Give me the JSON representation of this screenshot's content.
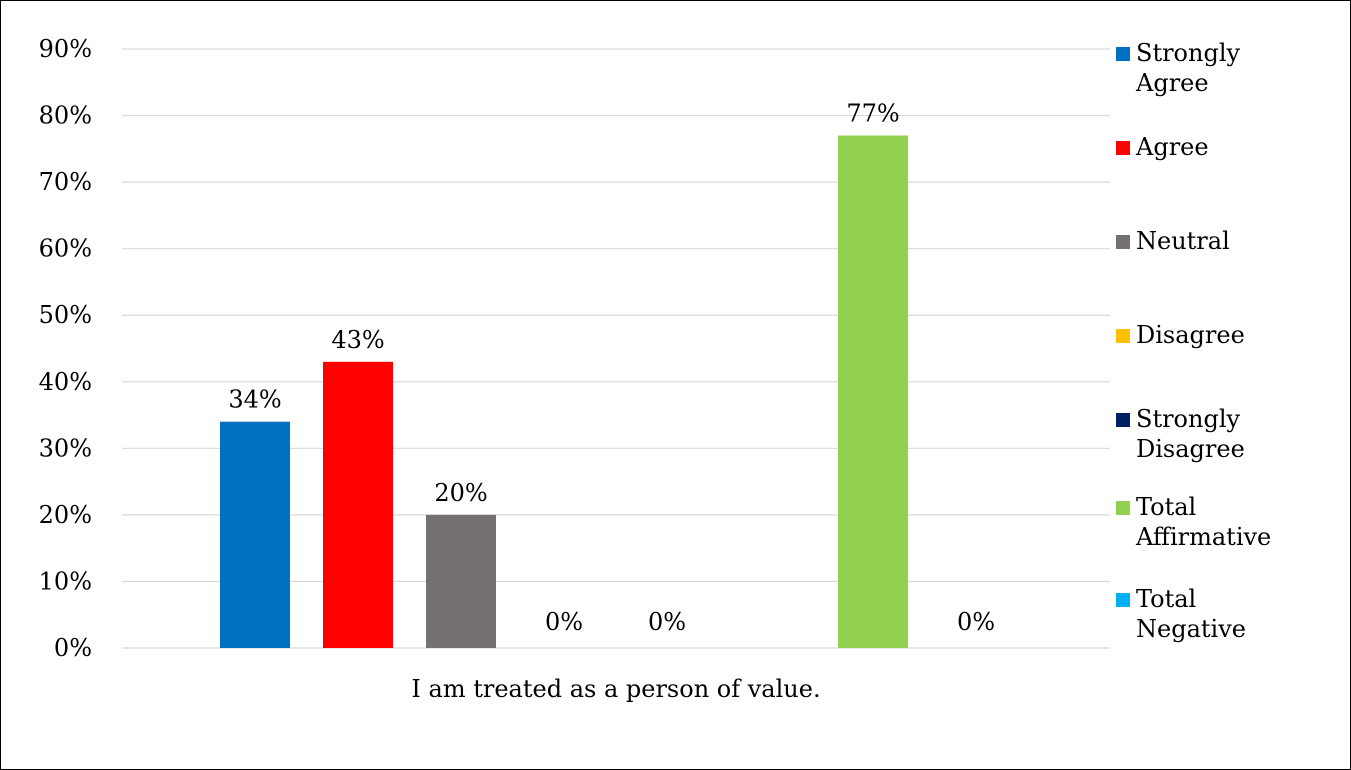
{
  "chart_data": {
    "type": "bar",
    "categories": [
      "I am treated as a person of value."
    ],
    "series": [
      {
        "name": "Strongly Agree",
        "values": [
          0.34
        ],
        "label": "34%",
        "color": "#0070C0"
      },
      {
        "name": "Agree",
        "values": [
          0.43
        ],
        "label": "43%",
        "color": "#FF0000"
      },
      {
        "name": "Neutral",
        "values": [
          0.2
        ],
        "label": "20%",
        "color": "#767171"
      },
      {
        "name": "Disagree",
        "values": [
          0.0
        ],
        "label": "0%",
        "color": "#FFC000"
      },
      {
        "name": "Strongly Disagree",
        "values": [
          0.0
        ],
        "label": "0%",
        "color": "#002060"
      },
      {
        "name": "Total Affirmative",
        "values": [
          0.77
        ],
        "label": "77%",
        "color": "#92D050"
      },
      {
        "name": "Total Negative",
        "values": [
          0.0
        ],
        "label": "0%",
        "color": "#00B0F0"
      }
    ],
    "ylim": [
      0,
      0.9
    ],
    "yticks": [
      {
        "value": 0.0,
        "label": "0%"
      },
      {
        "value": 0.1,
        "label": "10%"
      },
      {
        "value": 0.2,
        "label": "20%"
      },
      {
        "value": 0.3,
        "label": "30%"
      },
      {
        "value": 0.4,
        "label": "40%"
      },
      {
        "value": 0.5,
        "label": "50%"
      },
      {
        "value": 0.6,
        "label": "60%"
      },
      {
        "value": 0.7,
        "label": "70%"
      },
      {
        "value": 0.8,
        "label": "80%"
      },
      {
        "value": 0.9,
        "label": "90%"
      }
    ],
    "grid": true,
    "legend_position": "right",
    "gridline_color": "#D9D9D9"
  }
}
